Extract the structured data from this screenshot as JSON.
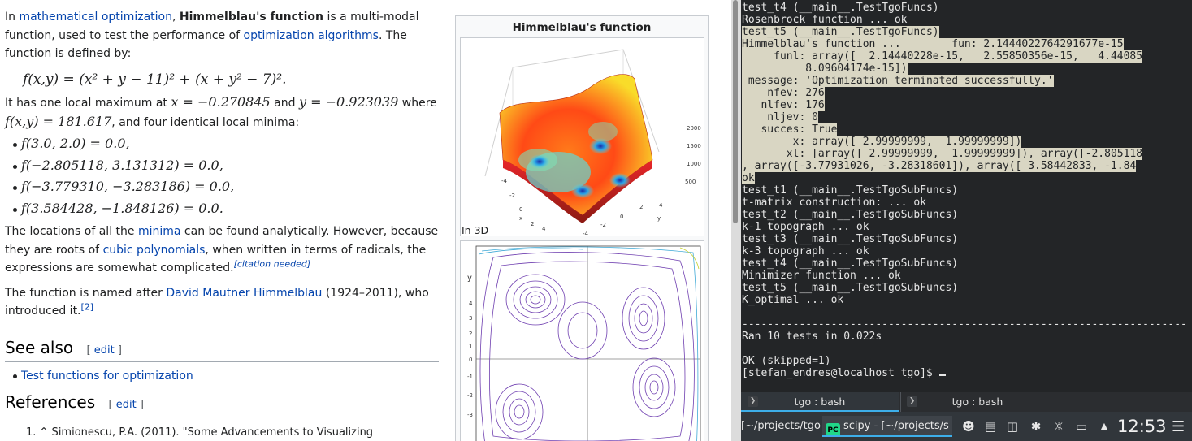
{
  "article": {
    "intro_p1": [
      "In ",
      "mathematical optimization",
      ", ",
      "Himmelblau's function",
      " is a multi-modal function, used to test the performance of ",
      "optimization algorithms",
      ". The function is defined by:"
    ],
    "equation": "f(x,y) = (x² + y − 11)² + (x + y² − 7)².",
    "intro_p2_a": "It has one local maximum at ",
    "max_x": "x = −0.270845",
    "intro_p2_and": " and ",
    "max_y": "y = −0.923039",
    "intro_p2_where": " where",
    "max_f": "f(x,y) = 181.617",
    "intro_p2_b": ", and four identical local minima:",
    "minima": [
      "f(3.0, 2.0) = 0.0,",
      "f(−2.805118, 3.131312) = 0.0,",
      "f(−3.779310, −3.283186) = 0.0,",
      "f(3.584428, −1.848126) = 0.0."
    ],
    "p3_a": "The locations of all the ",
    "p3_link1": "minima",
    "p3_b": " can be found analytically. However, because they are roots of ",
    "p3_link2": "cubic polynomials",
    "p3_c": ", when written in terms of radicals, the expressions are somewhat complicated.",
    "citation_needed": "[citation needed]",
    "p4_a": "The function is named after ",
    "p4_link": "David Mautner Himmelblau",
    "p4_b": " (1924–2011), who introduced it.",
    "p4_ref": "[2]",
    "see_also_heading": "See also",
    "edit_open": "[ ",
    "edit_label": "edit",
    "edit_close": " ]",
    "see_also_item": "Test functions for optimization",
    "references_heading": "References",
    "reference_1": "1. ^ Simionescu, P.A. (2011). \"Some Advancements to Visualizing"
  },
  "infobox": {
    "title": "Himmelblau's function",
    "caption_3d": "In 3D",
    "z_ticks": [
      "2000",
      "1500",
      "1000",
      "500"
    ],
    "x_ticks": [
      "-4",
      "-2",
      "0",
      "2",
      "4"
    ],
    "y_ticks": [
      "-4",
      "-2",
      "0",
      "2",
      "4"
    ],
    "x_label": "x",
    "y_label": "y",
    "contour_y_ticks": [
      "4",
      "3",
      "2",
      "1",
      "0",
      "-1",
      "-2",
      "-3"
    ],
    "contour_y_label": "y"
  },
  "terminal": {
    "lines": [
      {
        "text": "test_t4 (__main__.TestTgoFuncs)",
        "hl": false
      },
      {
        "text": "Rosenbrock function ... ok",
        "hl": false
      },
      {
        "text": "test_t5 (__main__.TestTgoFuncs)",
        "hl": true
      },
      {
        "text": "Himmelblau's function ...        fun: 2.1444022764291677e-15",
        "hl": true
      },
      {
        "text": "     funl: array([  2.14440228e-15,   2.55850356e-15,   4.44085",
        "hl": true
      },
      {
        "text": "          8.09604174e-15])",
        "hl": true
      },
      {
        "text": " message: 'Optimization terminated successfully.'",
        "hl": true
      },
      {
        "text": "    nfev: 276",
        "hl": true
      },
      {
        "text": "   nlfev: 176",
        "hl": true
      },
      {
        "text": "    nljev: 0",
        "hl": true
      },
      {
        "text": "   succes: True",
        "hl": true
      },
      {
        "text": "        x: array([ 2.99999999,  1.99999999])",
        "hl": true
      },
      {
        "text": "       xl: [array([ 2.99999999,  1.99999999]), array([-2.805118",
        "hl": true
      },
      {
        "text": ", array([-3.77931026, -3.28318601]), array([ 3.58442833, -1.84",
        "hl": true
      },
      {
        "text": "ok",
        "hl": true
      },
      {
        "text": "test_t1 (__main__.TestTgoSubFuncs)",
        "hl": false
      },
      {
        "text": "t-matrix construction: ... ok",
        "hl": false
      },
      {
        "text": "test_t2 (__main__.TestTgoSubFuncs)",
        "hl": false
      },
      {
        "text": "k-1 topograph ... ok",
        "hl": false
      },
      {
        "text": "test_t3 (__main__.TestTgoSubFuncs)",
        "hl": false
      },
      {
        "text": "k-3 topograph ... ok",
        "hl": false
      },
      {
        "text": "test_t4 (__main__.TestTgoSubFuncs)",
        "hl": false
      },
      {
        "text": "Minimizer function ... ok",
        "hl": false
      },
      {
        "text": "test_t5 (__main__.TestTgoSubFuncs)",
        "hl": false
      },
      {
        "text": "K_optimal ... ok",
        "hl": false
      },
      {
        "text": "",
        "hl": false
      },
      {
        "text": "----------------------------------------------------------------------",
        "hl": false
      },
      {
        "text": "Ran 10 tests in 0.022s",
        "hl": false
      },
      {
        "text": "",
        "hl": false
      },
      {
        "text": "OK (skipped=1)",
        "hl": false
      },
      {
        "text": "[stefan_endres@localhost tgo]$ ",
        "hl": false,
        "cursor": true
      }
    ]
  },
  "tabs": [
    {
      "label": "tgo : bash",
      "active": true
    },
    {
      "label": "tgo : bash",
      "active": false
    }
  ],
  "taskbar": {
    "task1_label": "[~/projects/tgo",
    "task2_icon": "PC",
    "task2_label": "scipy - [~/projects/s",
    "clock": "12:53"
  },
  "colors": {
    "link": "#0645ad",
    "red_link": "#a55858",
    "terminal_bg": "#232527",
    "selection": "#d9d6c3",
    "accent": "#3daee9"
  }
}
